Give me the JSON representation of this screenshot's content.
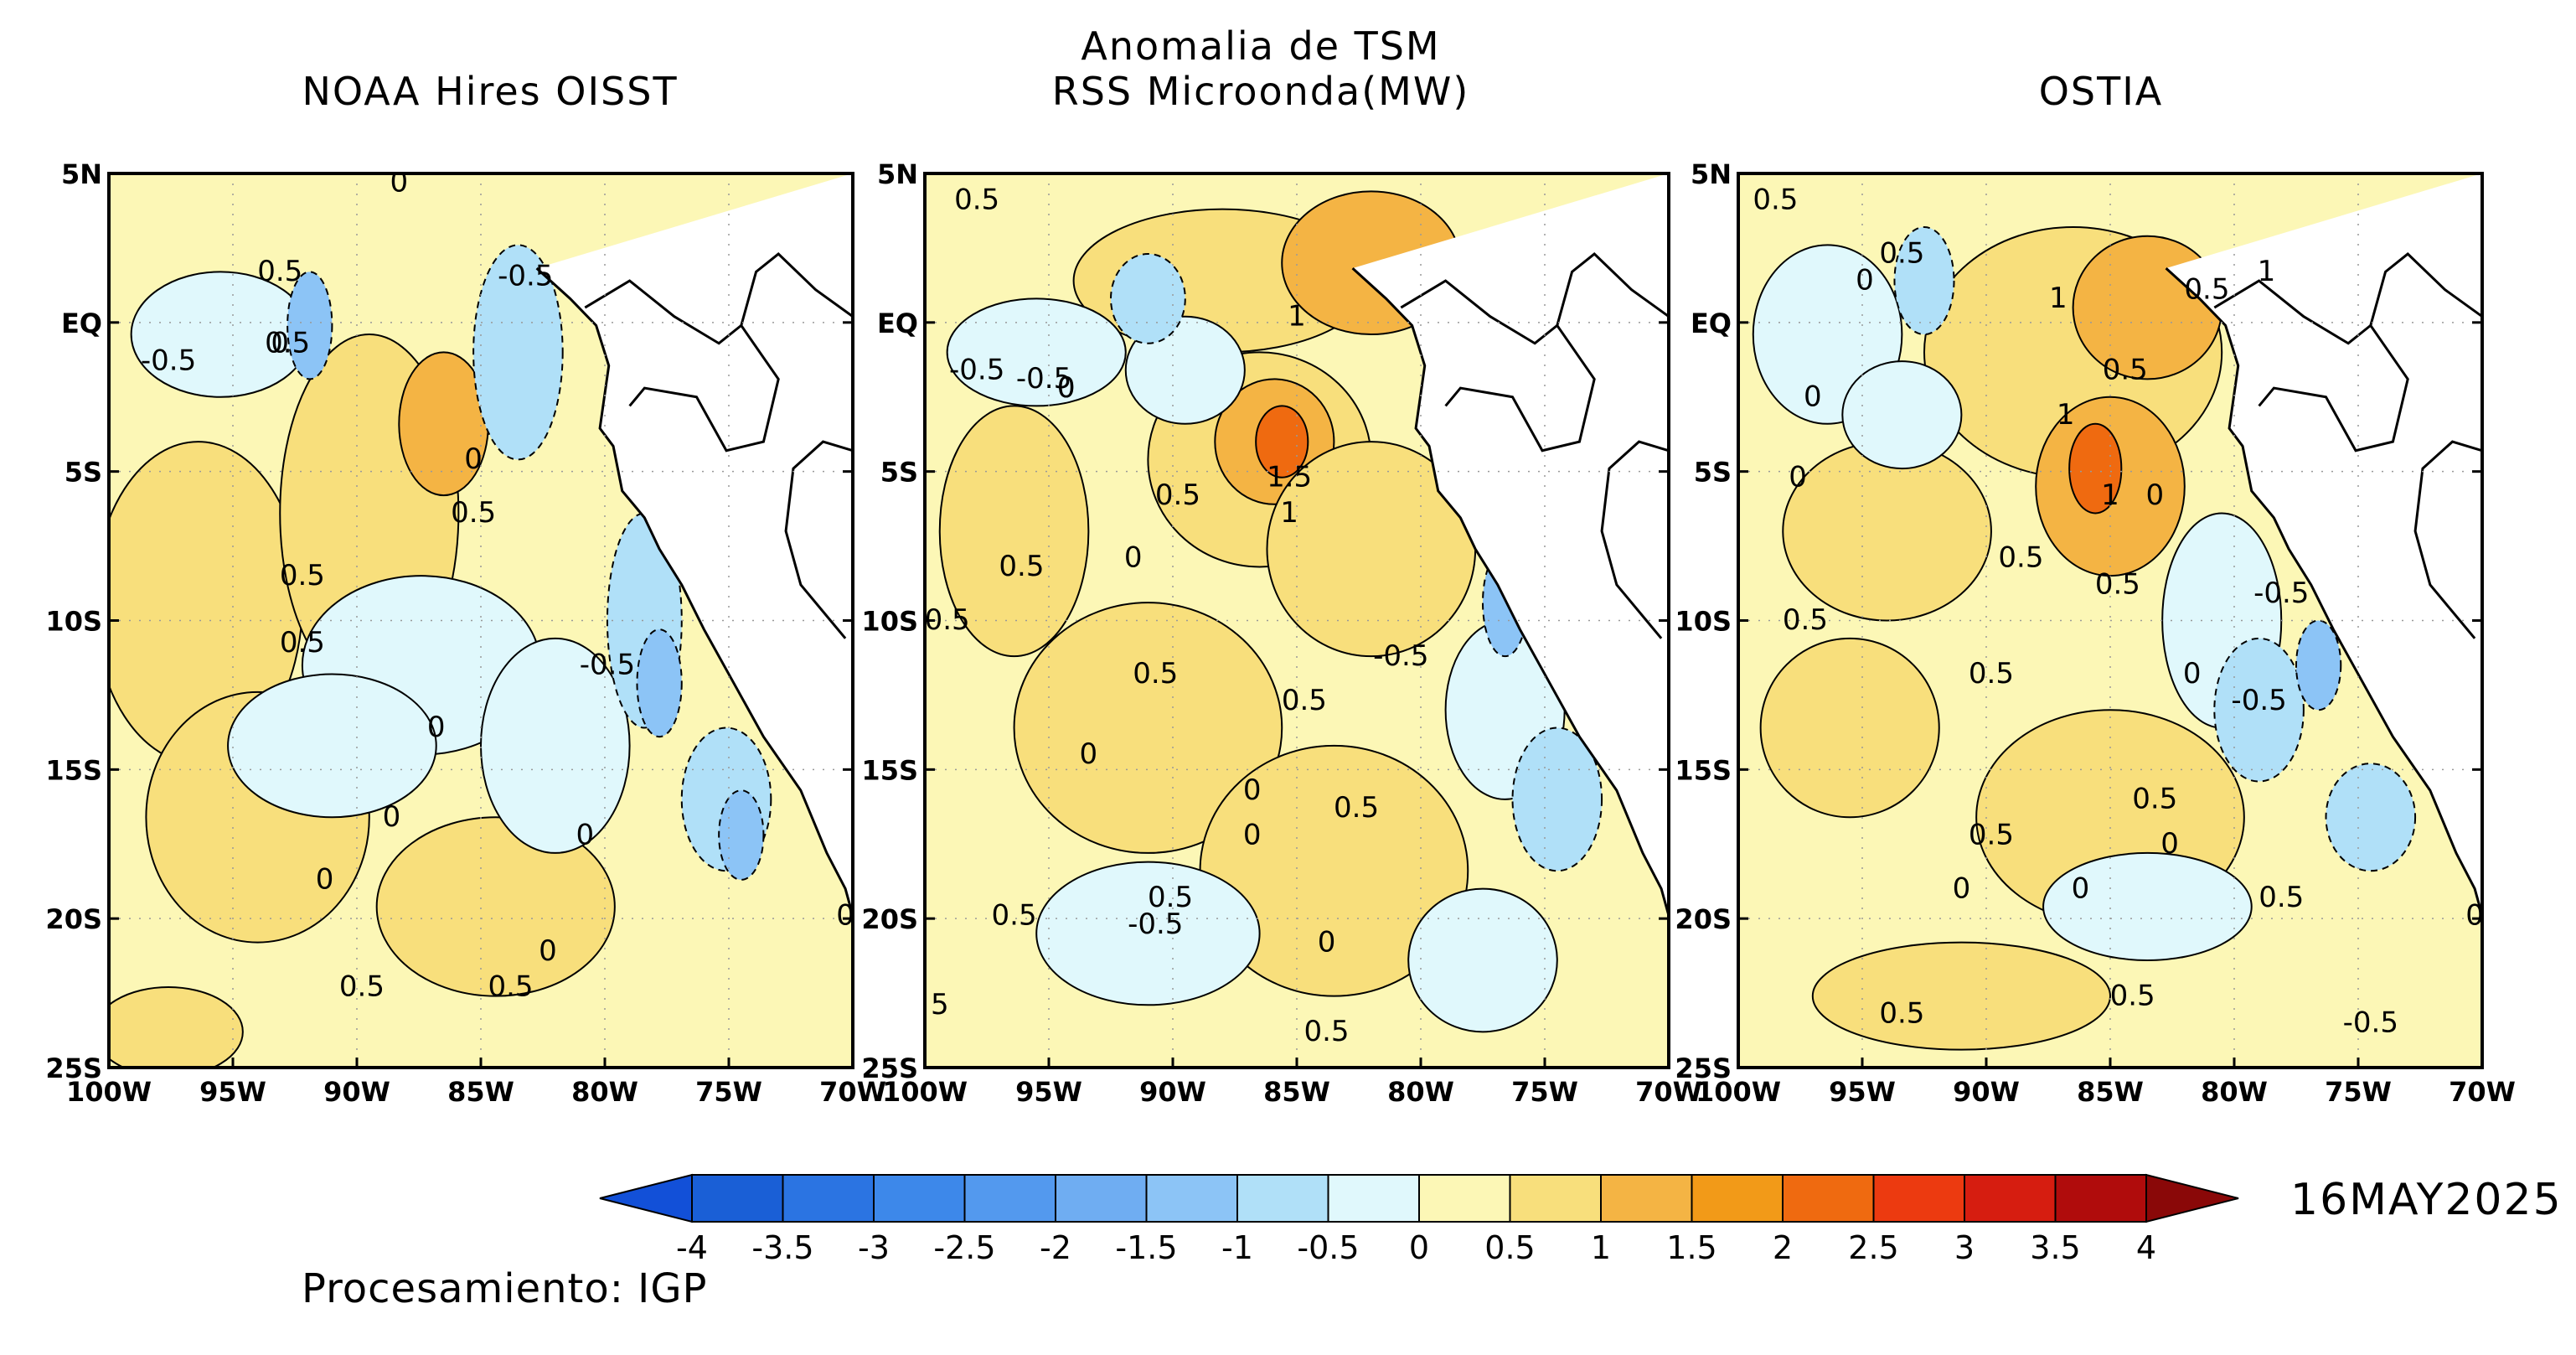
{
  "figure": {
    "title_line1": "Anomalia de TSM",
    "title_line2": "RSS Microonda(MW)",
    "date": "16MAY2025",
    "credit": "Procesamiento: IGP"
  },
  "panels": [
    {
      "title": "NOAA Hires OISST",
      "contour_labels": [
        "0",
        "0.5",
        "-0.5",
        "0.5",
        "-0.5",
        "0",
        "0",
        "0.5",
        "0.5",
        "0.5",
        "-0.5",
        "0",
        "0",
        "0",
        "0",
        "0",
        "0.5",
        "0.5",
        "0"
      ]
    },
    {
      "title": "",
      "contour_labels": [
        "0.5",
        "0",
        "-0.5",
        "-0.5",
        "0",
        "1",
        "0.5",
        "1.5",
        "1",
        "0.5",
        "0",
        "0.5",
        "-0.5",
        "0.5",
        "0",
        "0.5",
        "0",
        "0",
        "0.5",
        "0.5",
        "-0.5",
        "0.5",
        "0",
        "0.5",
        "5"
      ]
    },
    {
      "title": "OSTIA",
      "contour_labels": [
        "0.5",
        "0.5",
        "0",
        "1",
        "0.5",
        "1",
        "0.5",
        "0",
        "1",
        "0",
        "1",
        "0",
        "0.5",
        "0.5",
        "-0.5",
        "0.5",
        "0.5",
        "0",
        "-0.5",
        "0.5",
        "0.5",
        "0",
        "0",
        "0",
        "0.5",
        "0",
        "0.5",
        "0.5",
        "-0.5"
      ]
    }
  ],
  "axes": {
    "lat_ticks": [
      "5N",
      "EQ",
      "5S",
      "10S",
      "15S",
      "20S",
      "25S"
    ],
    "lon_ticks": [
      "100W",
      "95W",
      "90W",
      "85W",
      "80W",
      "75W",
      "70W"
    ]
  },
  "colorbar": {
    "labels": [
      "-4",
      "-3.5",
      "-3",
      "-2.5",
      "-2",
      "-1.5",
      "-1",
      "-0.5",
      "0",
      "0.5",
      "1",
      "1.5",
      "2",
      "2.5",
      "3",
      "3.5",
      "4"
    ],
    "colors": [
      "#1a5fd6",
      "#2b74e2",
      "#3d88ea",
      "#5399ee",
      "#6fadf2",
      "#8cc4f6",
      "#b0e0f8",
      "#e0f8fc",
      "#fcf7b6",
      "#f8df7c",
      "#f4b444",
      "#f29a18",
      "#ef6a10",
      "#ec3a10",
      "#d61d10",
      "#b00c0c"
    ],
    "left_arrow_color": "#1250d8",
    "right_arrow_color": "#8a0808"
  },
  "map_colors": {
    "ocean_base": "#fcf7b6",
    "warm_05": "#f8df7c",
    "warm_1": "#f4b444",
    "warm_15": "#ef6a10",
    "cool_0": "#e0f8fc",
    "cool_05": "#b0e0f8",
    "cool_1": "#8cc4f6",
    "land": "#ffffff"
  }
}
